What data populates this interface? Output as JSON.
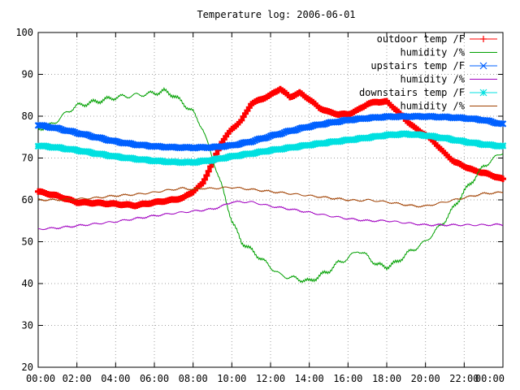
{
  "chart_data": {
    "type": "line",
    "title": "Temperature log: 2006-06-01",
    "xlabel": "",
    "ylabel": "",
    "xlim": [
      0,
      24
    ],
    "ylim": [
      20,
      100
    ],
    "xticks": [
      0,
      2,
      4,
      6,
      8,
      10,
      12,
      14,
      16,
      18,
      20,
      22,
      24
    ],
    "xtick_labels": [
      "00:00",
      "02:00",
      "04:00",
      "06:00",
      "08:00",
      "10:00",
      "12:00",
      "14:00",
      "16:00",
      "18:00",
      "20:00",
      "22:00",
      "00:00"
    ],
    "yticks": [
      20,
      30,
      40,
      50,
      60,
      70,
      80,
      90,
      100
    ],
    "ytick_labels": [
      "20",
      "30",
      "40",
      "50",
      "60",
      "70",
      "80",
      "90",
      "100"
    ],
    "grid": true,
    "legend_position": "top-right",
    "series": [
      {
        "name": "outdoor temp /F",
        "color": "#ff0000",
        "marker": "plus",
        "x": [
          0,
          1,
          2,
          3,
          4,
          5,
          6,
          7,
          7.5,
          8,
          8.5,
          9,
          9.5,
          10,
          10.5,
          11,
          11.5,
          12,
          12.5,
          13,
          13.5,
          14,
          14.5,
          15,
          15.5,
          16,
          16.5,
          17,
          17.5,
          18,
          18.5,
          19,
          19.5,
          20,
          20.5,
          21,
          21.5,
          22,
          22.5,
          23,
          23.5,
          24
        ],
        "y": [
          62,
          61,
          59.5,
          59.3,
          59,
          58.6,
          59.3,
          60,
          60.5,
          62,
          64,
          69,
          74,
          77,
          79,
          83,
          84,
          85,
          86.5,
          84.5,
          85.5,
          84,
          82,
          81,
          80.5,
          80.5,
          81.5,
          83,
          83.5,
          83.5,
          81.5,
          79,
          77,
          75.5,
          73.5,
          71,
          69,
          68,
          67,
          66.5,
          65.8,
          65
        ]
      },
      {
        "name": "humidity /%",
        "color": "#00a000",
        "marker": "none",
        "x": [
          0,
          0.5,
          1,
          1.5,
          2,
          3,
          4,
          5,
          6,
          6.5,
          7,
          8,
          8.5,
          9,
          9.5,
          10,
          10.5,
          11,
          11.5,
          12,
          12.5,
          13,
          14,
          15,
          15.5,
          16,
          16.5,
          17,
          17.5,
          18,
          18.5,
          19,
          20,
          21,
          22,
          23,
          24
        ],
        "y": [
          77,
          77.5,
          79,
          81,
          82.5,
          83.5,
          84.5,
          85,
          85.5,
          86,
          85,
          81,
          77,
          70,
          63,
          55,
          50,
          48,
          46,
          44,
          42,
          41.5,
          40.5,
          43,
          45,
          46,
          48,
          46.5,
          44.5,
          44,
          45,
          47,
          50,
          55,
          62,
          68,
          71.5
        ]
      },
      {
        "name": "upstairs temp /F",
        "color": "#0060ff",
        "marker": "cross",
        "x": [
          0,
          1,
          2,
          3,
          4,
          5,
          6,
          7,
          8,
          9,
          10,
          11,
          12,
          13,
          14,
          15,
          16,
          17,
          18,
          19,
          20,
          21,
          22,
          23,
          24
        ],
        "y": [
          77.8,
          77,
          76,
          75,
          74,
          73.3,
          72.8,
          72.5,
          72.4,
          72.5,
          73,
          74,
          75.3,
          76.5,
          77.5,
          78.3,
          79,
          79.5,
          79.9,
          80,
          80,
          79.8,
          79.5,
          79,
          78
        ]
      },
      {
        "name": "humidity /%",
        "color": "#a000c0",
        "marker": "none",
        "x": [
          0,
          1,
          2,
          3,
          4,
          5,
          6,
          7,
          8,
          9,
          9.5,
          10,
          11,
          12,
          13,
          14,
          15,
          16,
          17,
          18,
          19,
          20,
          21,
          22,
          23,
          24
        ],
        "y": [
          53,
          53.3,
          53.8,
          54.3,
          54.8,
          55.5,
          56.2,
          56.8,
          57.3,
          57.8,
          58.5,
          59.5,
          59.5,
          58.5,
          57.8,
          57,
          56.2,
          55.5,
          55,
          55,
          54.5,
          54,
          54,
          54,
          54,
          54.1
        ]
      },
      {
        "name": "downstairs temp /F",
        "color": "#00e0e0",
        "marker": "star",
        "x": [
          0,
          1,
          2,
          3,
          4,
          5,
          6,
          7,
          8,
          9,
          10,
          11,
          12,
          13,
          14,
          15,
          16,
          17,
          18,
          19,
          20,
          21,
          22,
          23,
          24
        ],
        "y": [
          73,
          72.5,
          71.8,
          71,
          70.3,
          69.8,
          69.4,
          69.1,
          69,
          69.5,
          70.3,
          71,
          71.8,
          72.5,
          73.2,
          73.8,
          74.3,
          74.8,
          75.4,
          75.7,
          75.4,
          74.8,
          74,
          73.3,
          72.8
        ]
      },
      {
        "name": "humidity /%",
        "color": "#a04000",
        "marker": "none",
        "x": [
          0,
          1,
          2,
          3,
          4,
          5,
          6,
          6.5,
          7,
          7.5,
          8,
          8.5,
          9,
          9.5,
          10,
          11,
          12,
          13,
          14,
          15,
          16,
          16.5,
          17,
          18,
          19,
          19.5,
          20,
          21,
          22,
          23,
          24
        ],
        "y": [
          60,
          60,
          60.2,
          60.5,
          61,
          61.3,
          61.8,
          62.2,
          62.5,
          62.8,
          62.5,
          62.8,
          62.7,
          62.9,
          63,
          62.5,
          62,
          61.5,
          61,
          60.5,
          60,
          59.8,
          60,
          59.5,
          58.8,
          58.5,
          58.5,
          59.5,
          60.5,
          61.5,
          61.8
        ]
      }
    ]
  }
}
